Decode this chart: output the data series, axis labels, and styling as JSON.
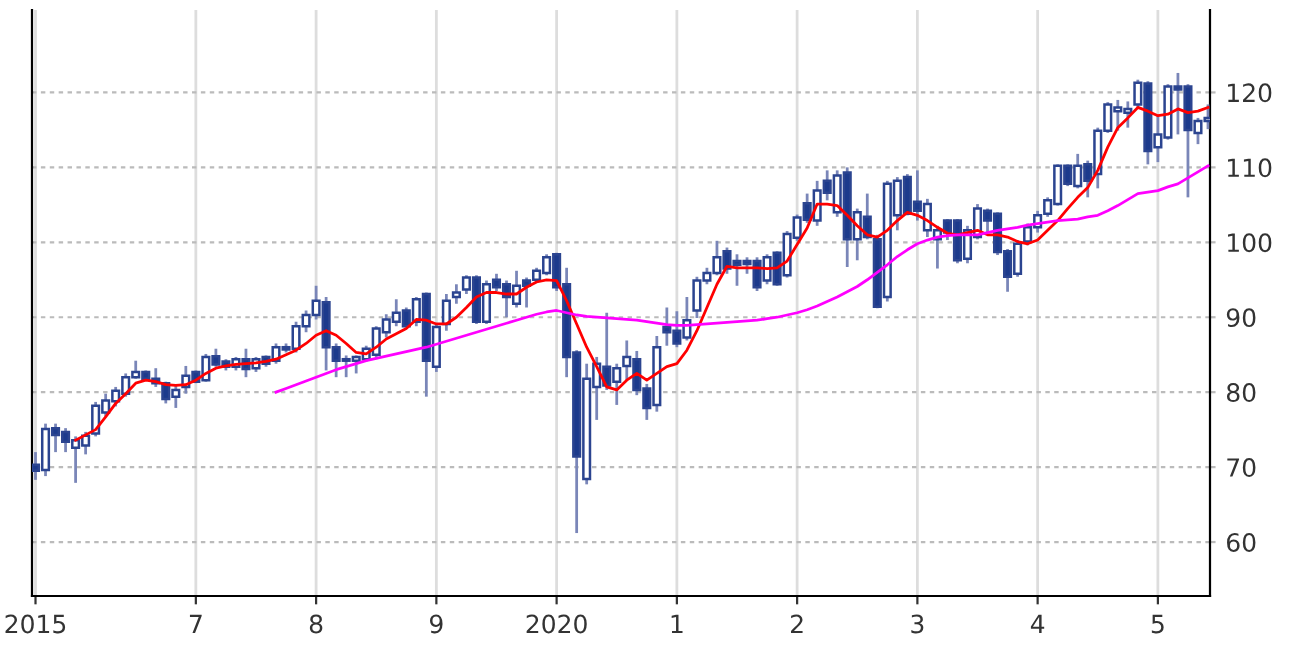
{
  "chart_data": {
    "type": "candlestick",
    "categories": [
      "2015",
      null,
      null,
      null,
      null,
      null,
      null,
      null,
      null,
      null,
      null,
      null,
      null,
      null,
      null,
      null,
      "7",
      null,
      null,
      null,
      null,
      null,
      null,
      null,
      null,
      null,
      null,
      null,
      "8",
      null,
      null,
      null,
      null,
      null,
      null,
      null,
      null,
      null,
      null,
      null,
      "9",
      null,
      null,
      null,
      null,
      null,
      null,
      null,
      null,
      null,
      null,
      null,
      "2020",
      null,
      null,
      null,
      null,
      null,
      null,
      null,
      null,
      null,
      null,
      null,
      "1",
      null,
      null,
      null,
      null,
      null,
      null,
      null,
      null,
      null,
      null,
      null,
      "2",
      null,
      null,
      null,
      null,
      null,
      null,
      null,
      null,
      null,
      null,
      null,
      "3",
      null,
      null,
      null,
      null,
      null,
      null,
      null,
      null,
      null,
      null,
      null,
      "4",
      null,
      null,
      null,
      null,
      null,
      null,
      null,
      null,
      null,
      null,
      null,
      "5",
      null,
      null,
      null,
      null,
      null
    ],
    "series": [
      {
        "type": "candlestick",
        "colors": [
          "#1c3a8c",
          "#ffffff",
          "#1c3a8c",
          "#1c3a8c",
          "#ffffff",
          "#ffffff",
          "#ffffff",
          "#ffffff",
          "#ffffff",
          "#ffffff",
          "#ffffff",
          "#1c3a8c",
          "#1c3a8c",
          "#1c3a8c",
          "#ffffff",
          "#ffffff",
          "#1c3a8c",
          "#ffffff",
          "#1c3a8c",
          "#1c3a8c",
          "#ffffff",
          "#1c3a8c",
          "#ffffff",
          "#1c3a8c",
          "#ffffff",
          "#1c3a8c",
          "#ffffff",
          "#ffffff",
          "#ffffff",
          "#1c3a8c",
          "#1c3a8c",
          "#1c3a8c",
          "#ffffff",
          "#ffffff",
          "#ffffff",
          "#ffffff",
          "#ffffff",
          "#1c3a8c",
          "#ffffff",
          "#1c3a8c",
          "#ffffff",
          "#ffffff",
          "#ffffff",
          "#ffffff",
          "#1c3a8c",
          "#ffffff",
          "#1c3a8c",
          "#1c3a8c",
          "#ffffff",
          "#1c3a8c",
          "#ffffff",
          "#ffffff",
          "#1c3a8c",
          "#1c3a8c",
          "#1c3a8c",
          "#ffffff",
          "#ffffff",
          "#1c3a8c",
          "#ffffff",
          "#ffffff",
          "#1c3a8c",
          "#1c3a8c",
          "#ffffff",
          "#1c3a8c",
          "#1c3a8c",
          "#ffffff",
          "#ffffff",
          "#ffffff",
          "#ffffff",
          "#1c3a8c",
          "#1c3a8c",
          "#1c3a8c",
          "#1c3a8c",
          "#ffffff",
          "#1c3a8c",
          "#ffffff",
          "#ffffff",
          "#1c3a8c",
          "#ffffff",
          "#1c3a8c",
          "#ffffff",
          "#1c3a8c",
          "#ffffff",
          "#1c3a8c",
          "#1c3a8c",
          "#ffffff",
          "#ffffff",
          "#1c3a8c",
          "#1c3a8c",
          "#ffffff",
          "#ffffff",
          "#1c3a8c",
          "#1c3a8c",
          "#ffffff",
          "#ffffff",
          "#1c3a8c",
          "#1c3a8c",
          "#1c3a8c",
          "#ffffff",
          "#ffffff",
          "#ffffff",
          "#ffffff",
          "#ffffff",
          "#1c3a8c",
          "#ffffff",
          "#1c3a8c",
          "#ffffff",
          "#ffffff",
          "#ffffff",
          "#ffffff",
          "#ffffff",
          "#1c3a8c",
          "#ffffff",
          "#ffffff",
          "#1c3a8c",
          "#1c3a8c",
          "#ffffff",
          "#ffffff"
        ],
        "ohlc": [
          [
            70.3,
            72.0,
            68.3,
            69.5
          ],
          [
            69.6,
            75.8,
            68.8,
            75.1
          ],
          [
            75.2,
            75.8,
            72.0,
            74.3
          ],
          [
            74.7,
            75.2,
            72.0,
            73.4
          ],
          [
            72.6,
            74.1,
            67.9,
            73.6
          ],
          [
            72.9,
            74.7,
            71.7,
            74.2
          ],
          [
            74.5,
            78.7,
            74.1,
            78.2
          ],
          [
            77.3,
            79.8,
            76.7,
            78.9
          ],
          [
            78.8,
            80.7,
            78.1,
            80.2
          ],
          [
            79.8,
            82.5,
            79.4,
            82.0
          ],
          [
            82.0,
            84.2,
            81.8,
            82.7
          ],
          [
            82.7,
            82.9,
            81.6,
            81.8
          ],
          [
            81.8,
            83.2,
            80.7,
            81.2
          ],
          [
            81.2,
            81.4,
            78.5,
            79.1
          ],
          [
            79.4,
            80.9,
            77.9,
            80.3
          ],
          [
            80.7,
            83.5,
            79.8,
            82.2
          ],
          [
            82.7,
            82.9,
            81.2,
            81.4
          ],
          [
            81.6,
            85.1,
            81.4,
            84.7
          ],
          [
            84.8,
            85.8,
            83.4,
            83.7
          ],
          [
            84.1,
            84.4,
            82.9,
            83.4
          ],
          [
            83.4,
            84.7,
            82.9,
            84.4
          ],
          [
            84.4,
            85.8,
            82.0,
            83.1
          ],
          [
            83.2,
            84.7,
            82.7,
            84.4
          ],
          [
            84.7,
            84.9,
            83.4,
            83.8
          ],
          [
            84.2,
            86.5,
            83.8,
            86.0
          ],
          [
            86.0,
            86.5,
            85.3,
            85.7
          ],
          [
            85.8,
            89.4,
            85.3,
            88.8
          ],
          [
            88.8,
            90.9,
            88.0,
            90.3
          ],
          [
            90.3,
            94.2,
            89.7,
            92.2
          ],
          [
            92.0,
            92.7,
            82.9,
            86.0
          ],
          [
            86.0,
            86.5,
            82.0,
            84.2
          ],
          [
            84.4,
            84.9,
            82.0,
            84.2
          ],
          [
            84.2,
            84.9,
            82.5,
            84.7
          ],
          [
            84.4,
            86.2,
            84.1,
            85.8
          ],
          [
            85.0,
            88.8,
            84.4,
            88.5
          ],
          [
            88.0,
            90.4,
            87.3,
            89.7
          ],
          [
            89.4,
            92.4,
            88.8,
            90.6
          ],
          [
            90.9,
            91.3,
            88.7,
            88.8
          ],
          [
            89.4,
            92.7,
            88.8,
            92.4
          ],
          [
            93.1,
            93.3,
            79.4,
            84.2
          ],
          [
            83.4,
            89.2,
            82.7,
            88.7
          ],
          [
            89.1,
            93.1,
            88.2,
            92.2
          ],
          [
            92.7,
            94.4,
            91.8,
            93.3
          ],
          [
            93.7,
            95.6,
            93.1,
            95.3
          ],
          [
            95.3,
            95.6,
            89.1,
            89.4
          ],
          [
            89.4,
            94.9,
            89.1,
            94.4
          ],
          [
            95.0,
            95.8,
            93.5,
            94.0
          ],
          [
            94.4,
            94.9,
            90.0,
            92.7
          ],
          [
            91.8,
            96.2,
            91.3,
            94.2
          ],
          [
            94.9,
            95.3,
            91.3,
            94.2
          ],
          [
            95.0,
            96.6,
            94.7,
            96.2
          ],
          [
            95.9,
            98.4,
            95.6,
            98.0
          ],
          [
            98.4,
            98.6,
            93.5,
            94.0
          ],
          [
            94.4,
            96.6,
            82.0,
            84.7
          ],
          [
            85.3,
            85.6,
            61.2,
            71.4
          ],
          [
            68.4,
            83.8,
            67.7,
            81.8
          ],
          [
            80.7,
            84.7,
            76.3,
            83.8
          ],
          [
            83.4,
            90.6,
            80.3,
            80.9
          ],
          [
            81.4,
            83.8,
            78.3,
            83.2
          ],
          [
            83.5,
            86.9,
            81.6,
            84.7
          ],
          [
            84.4,
            85.5,
            79.6,
            80.3
          ],
          [
            80.5,
            81.1,
            76.3,
            77.9
          ],
          [
            78.3,
            87.5,
            77.4,
            86.0
          ],
          [
            88.7,
            91.3,
            86.2,
            88.0
          ],
          [
            88.2,
            90.8,
            86.0,
            86.5
          ],
          [
            87.3,
            92.7,
            86.9,
            89.6
          ],
          [
            90.9,
            95.4,
            89.9,
            94.9
          ],
          [
            94.9,
            96.6,
            94.4,
            95.9
          ],
          [
            95.9,
            100.2,
            95.6,
            98.0
          ],
          [
            98.8,
            99.3,
            95.8,
            96.5
          ],
          [
            97.5,
            98.4,
            94.2,
            97.0
          ],
          [
            97.5,
            98.0,
            95.8,
            97.1
          ],
          [
            97.5,
            98.0,
            93.5,
            94.0
          ],
          [
            94.9,
            98.4,
            94.4,
            98.0
          ],
          [
            98.6,
            98.8,
            94.2,
            94.4
          ],
          [
            95.6,
            101.5,
            95.3,
            101.1
          ],
          [
            100.6,
            103.7,
            100.2,
            103.3
          ],
          [
            105.2,
            106.5,
            102.6,
            103.0
          ],
          [
            102.9,
            108.2,
            102.2,
            106.9
          ],
          [
            108.2,
            109.6,
            105.6,
            106.6
          ],
          [
            104.0,
            109.6,
            103.4,
            108.9
          ],
          [
            109.3,
            110.0,
            96.7,
            100.4
          ],
          [
            100.4,
            104.5,
            97.6,
            104.0
          ],
          [
            103.4,
            106.5,
            100.4,
            100.7
          ],
          [
            100.4,
            101.0,
            91.2,
            91.4
          ],
          [
            92.7,
            108.2,
            92.1,
            107.8
          ],
          [
            103.6,
            108.7,
            101.6,
            108.2
          ],
          [
            108.7,
            109.1,
            103.6,
            103.8
          ],
          [
            105.4,
            109.6,
            102.9,
            104.2
          ],
          [
            101.6,
            105.8,
            100.7,
            105.1
          ],
          [
            100.4,
            102.2,
            96.5,
            101.6
          ],
          [
            102.9,
            103.1,
            100.3,
            101.3
          ],
          [
            102.9,
            103.1,
            97.2,
            97.6
          ],
          [
            97.8,
            102.2,
            97.2,
            101.6
          ],
          [
            100.7,
            105.1,
            100.4,
            104.5
          ],
          [
            104.2,
            104.5,
            101.3,
            102.9
          ],
          [
            103.8,
            104.0,
            98.3,
            98.7
          ],
          [
            98.8,
            99.1,
            93.4,
            95.4
          ],
          [
            95.8,
            100.3,
            95.4,
            99.8
          ],
          [
            100.1,
            102.5,
            99.6,
            102.0
          ],
          [
            102.0,
            104.2,
            101.3,
            103.6
          ],
          [
            103.8,
            106.0,
            103.4,
            105.6
          ],
          [
            105.1,
            110.4,
            104.9,
            110.2
          ],
          [
            110.2,
            110.4,
            107.5,
            107.8
          ],
          [
            107.5,
            111.8,
            107.2,
            110.2
          ],
          [
            110.4,
            110.9,
            106.0,
            108.2
          ],
          [
            109.1,
            115.3,
            107.2,
            114.9
          ],
          [
            114.9,
            118.7,
            114.6,
            118.4
          ],
          [
            117.5,
            119.0,
            114.9,
            118.0
          ],
          [
            117.3,
            118.8,
            115.3,
            117.8
          ],
          [
            118.4,
            121.7,
            118.0,
            121.3
          ],
          [
            121.2,
            121.5,
            110.4,
            112.2
          ],
          [
            112.7,
            116.9,
            110.7,
            114.4
          ],
          [
            114.0,
            121.1,
            113.7,
            120.8
          ],
          [
            120.8,
            122.6,
            114.4,
            120.4
          ],
          [
            120.8,
            121.1,
            106.0,
            115.0
          ],
          [
            114.6,
            116.6,
            113.1,
            116.2
          ],
          [
            116.2,
            118.4,
            115.1,
            116.6
          ]
        ]
      },
      {
        "type": "line",
        "color": "#ff0000",
        "values": [
          null,
          null,
          null,
          null,
          73.6,
          74.3,
          75.0,
          76.7,
          78.5,
          79.8,
          81.2,
          81.6,
          81.4,
          81.0,
          80.9,
          81.0,
          81.6,
          82.5,
          83.2,
          83.5,
          83.7,
          83.8,
          83.9,
          84.1,
          84.4,
          85.0,
          85.6,
          86.5,
          87.6,
          88.2,
          87.6,
          86.5,
          85.3,
          85.1,
          86.0,
          87.1,
          87.8,
          88.5,
          89.7,
          89.6,
          89.1,
          89.1,
          90.0,
          91.3,
          92.7,
          93.3,
          93.3,
          93.1,
          93.1,
          94.0,
          94.7,
          95.0,
          94.9,
          92.2,
          89.1,
          86.0,
          83.4,
          80.7,
          80.3,
          81.6,
          82.5,
          81.6,
          82.5,
          83.4,
          83.8,
          85.6,
          88.2,
          91.3,
          94.4,
          96.8,
          96.6,
          96.6,
          96.6,
          96.5,
          96.6,
          97.5,
          99.7,
          101.9,
          105.1,
          105.1,
          104.9,
          103.6,
          102.2,
          101.0,
          100.7,
          101.6,
          102.9,
          104.0,
          103.6,
          102.9,
          102.0,
          101.2,
          101.0,
          101.3,
          101.6,
          101.0,
          101.0,
          100.7,
          100.1,
          99.8,
          100.3,
          101.6,
          102.9,
          104.5,
          106.0,
          107.3,
          109.6,
          112.7,
          115.3,
          116.6,
          118.0,
          117.5,
          116.9,
          117.1,
          117.8,
          117.3,
          117.5,
          118.0
        ]
      },
      {
        "type": "line",
        "color": "#ff00ff",
        "values": [
          null,
          null,
          null,
          null,
          null,
          null,
          null,
          null,
          null,
          null,
          null,
          null,
          null,
          null,
          null,
          null,
          null,
          null,
          null,
          null,
          null,
          null,
          null,
          null,
          80.0,
          80.5,
          81.0,
          81.5,
          82.0,
          82.5,
          83.0,
          83.4,
          83.8,
          84.2,
          84.5,
          84.8,
          85.1,
          85.4,
          85.7,
          86.0,
          86.4,
          86.8,
          87.2,
          87.6,
          88.0,
          88.4,
          88.8,
          89.2,
          89.6,
          90.0,
          90.4,
          90.7,
          90.9,
          90.6,
          90.3,
          90.1,
          90.0,
          89.9,
          89.8,
          89.7,
          89.6,
          89.4,
          89.2,
          89.0,
          88.9,
          88.9,
          89.0,
          89.1,
          89.2,
          89.3,
          89.4,
          89.5,
          89.6,
          89.8,
          90.0,
          90.3,
          90.6,
          91.0,
          91.5,
          92.1,
          92.7,
          93.4,
          94.1,
          95.0,
          96.0,
          97.0,
          98.1,
          99.0,
          99.8,
          100.3,
          100.7,
          100.9,
          101.0,
          101.0,
          101.0,
          101.3,
          101.6,
          101.8,
          102.0,
          102.3,
          102.5,
          102.7,
          102.9,
          103.0,
          103.1,
          103.4,
          103.6,
          104.2,
          104.9,
          105.7,
          106.5,
          106.7,
          106.9,
          107.4,
          107.8,
          108.6,
          109.4,
          110.2
        ]
      }
    ],
    "ylim": [
      52.8,
      131
    ],
    "yticks": [
      60,
      70,
      80,
      90,
      100,
      110,
      120
    ],
    "grid": true
  }
}
